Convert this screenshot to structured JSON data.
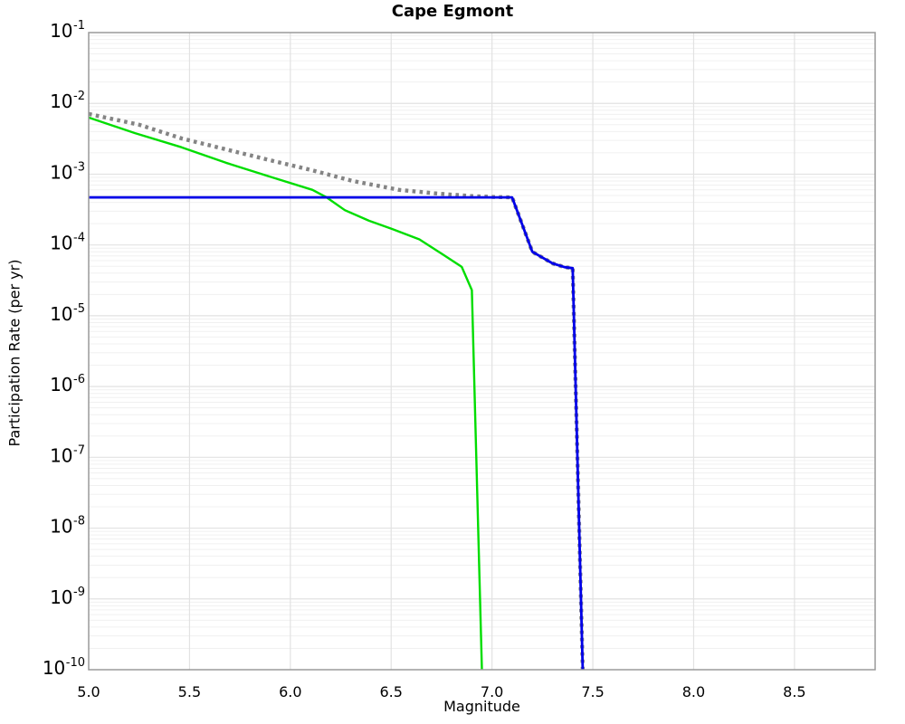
{
  "header": {
    "title": "Cape Egmont"
  },
  "axes": {
    "xlabel": "Magnitude",
    "ylabel": "Participation Rate (per yr)"
  },
  "colors": {
    "series_green": "#00dd00",
    "series_blue": "#0000e8",
    "series_gray": "#848484",
    "grid_major": "#e2e2e2",
    "grid_minor": "#f0f0f0",
    "frame": "#9a9a9a",
    "text": "#000000",
    "background": "#ffffff"
  },
  "chart_data": {
    "type": "line",
    "title": "Cape Egmont",
    "xlabel": "Magnitude",
    "ylabel": "Participation Rate (per yr)",
    "xlim": [
      5.0,
      8.9
    ],
    "ylim": [
      1e-10,
      0.1
    ],
    "log_y": true,
    "grid": "major and minor log gridlines, no legend",
    "legend_position": "none",
    "xticks": [
      5.0,
      5.5,
      6.0,
      6.5,
      7.0,
      7.5,
      8.0,
      8.5
    ],
    "ytick_exponents": [
      -1,
      -2,
      -3,
      -4,
      -5,
      -6,
      -7,
      -8,
      -9,
      -10
    ],
    "series": [
      {
        "name": "green-solid-gr-curve",
        "color": "#00dd00",
        "style": "solid",
        "width": 2.4,
        "points": [
          [
            5.0,
            0.0063
          ],
          [
            5.23,
            0.0038
          ],
          [
            5.46,
            0.0024
          ],
          [
            5.68,
            0.00145
          ],
          [
            5.91,
            0.0009
          ],
          [
            6.11,
            0.0006
          ],
          [
            6.18,
            0.00047
          ],
          [
            6.27,
            0.00031
          ],
          [
            6.39,
            0.00022
          ],
          [
            6.5,
            0.00017
          ],
          [
            6.64,
            0.00012
          ],
          [
            6.76,
            7.2e-05
          ],
          [
            6.85,
            4.9e-05
          ],
          [
            6.9,
            2.3e-05
          ],
          [
            6.95,
            1e-10
          ]
        ]
      },
      {
        "name": "gray-dotted-total-curve",
        "color": "#848484",
        "style": "dotted",
        "width": 4.4,
        "points": [
          [
            5.0,
            0.0071
          ],
          [
            5.25,
            0.005
          ],
          [
            5.46,
            0.0032
          ],
          [
            5.72,
            0.0021
          ],
          [
            5.91,
            0.00155
          ],
          [
            6.1,
            0.00115
          ],
          [
            6.31,
            0.0008
          ],
          [
            6.54,
            0.0006
          ],
          [
            6.72,
            0.000535
          ],
          [
            6.9,
            0.00049
          ],
          [
            7.02,
            0.000475
          ],
          [
            7.1,
            0.00047
          ],
          [
            7.2,
            8e-05
          ],
          [
            7.3,
            5.5e-05
          ],
          [
            7.36,
            4.85e-05
          ],
          [
            7.4,
            4.7e-05
          ],
          [
            7.45,
            1e-10
          ]
        ]
      },
      {
        "name": "blue-solid-characteristic-curve",
        "color": "#0000e8",
        "style": "solid",
        "width": 2.8,
        "points": [
          [
            5.0,
            0.00047
          ],
          [
            7.1,
            0.00047
          ],
          [
            7.2,
            8e-05
          ],
          [
            7.3,
            5.5e-05
          ],
          [
            7.36,
            4.85e-05
          ],
          [
            7.4,
            4.7e-05
          ],
          [
            7.45,
            1e-10
          ]
        ]
      }
    ]
  }
}
